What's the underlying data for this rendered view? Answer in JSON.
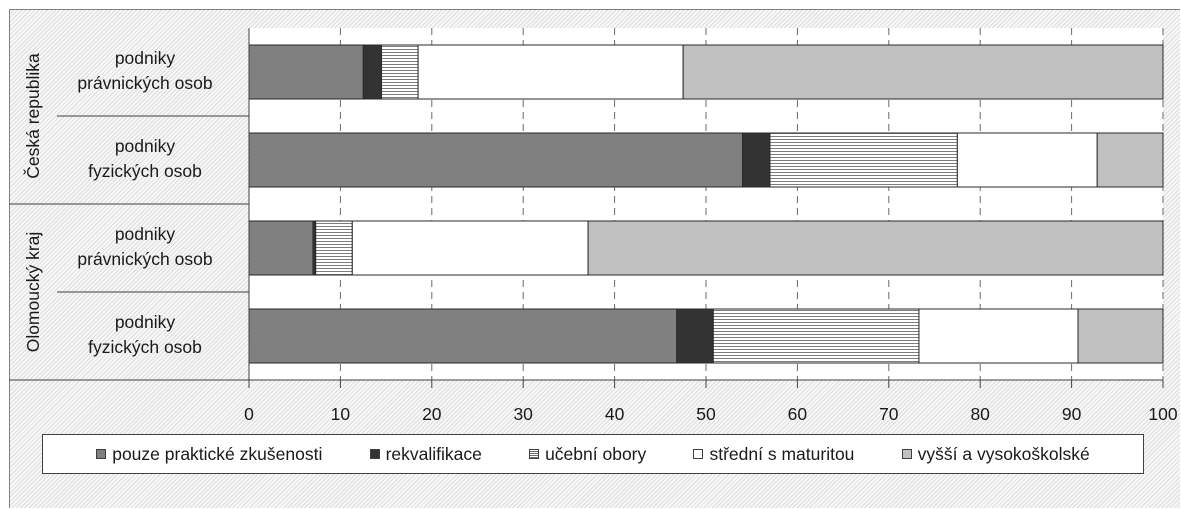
{
  "chart_data": {
    "type": "bar",
    "orientation": "horizontal",
    "stacked": true,
    "groups": [
      {
        "label": "Česká republika",
        "categories": [
          {
            "label": [
              "podniky",
              "právnických osob"
            ],
            "values": [
              12.5,
              2.0,
              4.0,
              29.0,
              52.5
            ]
          },
          {
            "label": [
              "podniky",
              "fyzických osob"
            ],
            "values": [
              54.0,
              3.0,
              20.5,
              15.3,
              7.2
            ]
          }
        ]
      },
      {
        "label": "Olomoucký kraj",
        "categories": [
          {
            "label": [
              "podniky",
              "právnických osob"
            ],
            "values": [
              7.0,
              0.3,
              4.0,
              25.8,
              62.9
            ]
          },
          {
            "label": [
              "podniky",
              "fyzických osob"
            ],
            "values": [
              46.8,
              4.0,
              22.5,
              17.4,
              9.3
            ]
          }
        ]
      }
    ],
    "series": [
      {
        "name": "pouze praktické zkušenosti",
        "color": "#808080",
        "pattern": "solid"
      },
      {
        "name": "rekvalifikace",
        "color": "#333333",
        "pattern": "solid"
      },
      {
        "name": "učební obory",
        "color": "#ffffff",
        "pattern": "horizontal-lines"
      },
      {
        "name": "střední s maturitou",
        "color": "#ffffff",
        "pattern": "solid"
      },
      {
        "name": "vyšší a vysokoškolské",
        "color": "#c0c0c0",
        "pattern": "solid"
      }
    ],
    "xlim": [
      0,
      100
    ],
    "xticks": [
      0,
      10,
      20,
      30,
      40,
      50,
      60,
      70,
      80,
      90,
      100
    ],
    "grid": "vertical-dashed",
    "legend_position": "bottom"
  }
}
